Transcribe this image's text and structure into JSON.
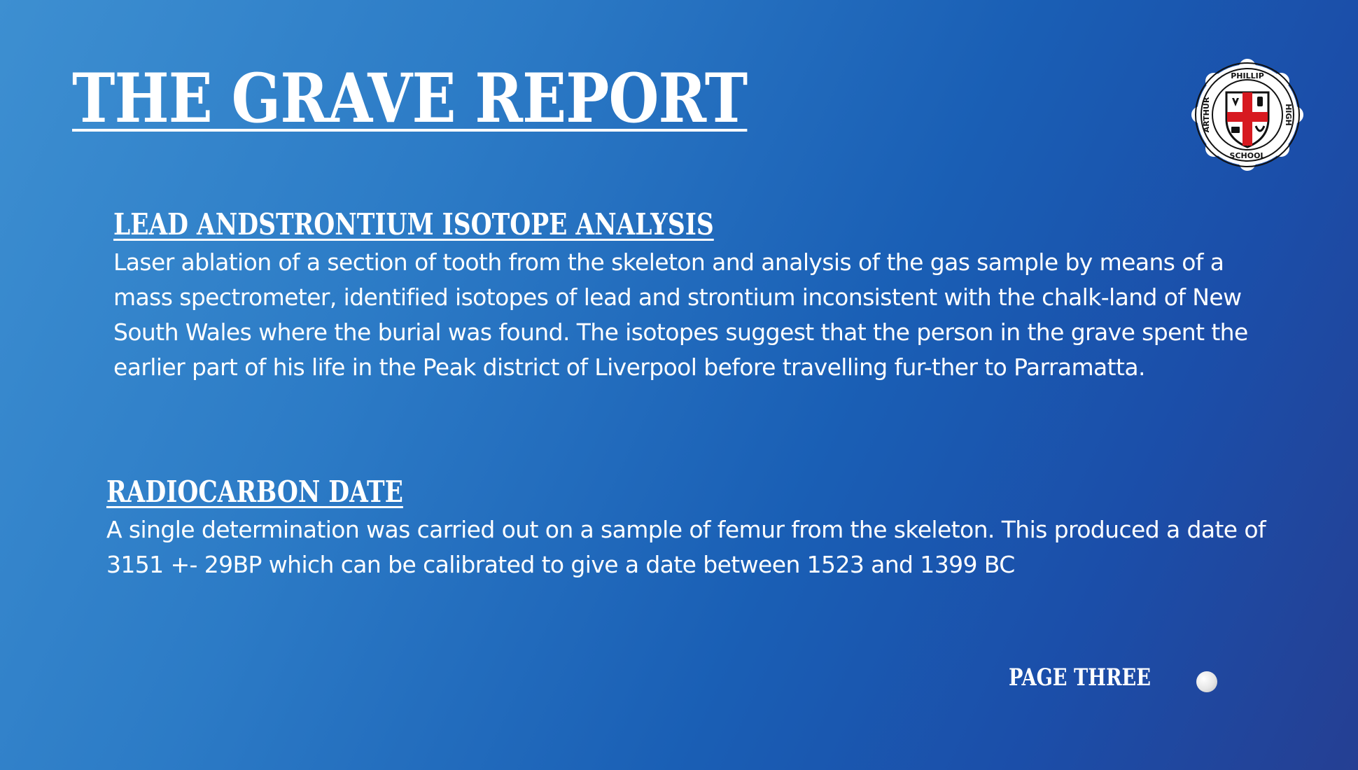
{
  "title": "THE GRAVE REPORT",
  "logo": {
    "top_text": "PHILLIP",
    "left_text": "ARTHUR",
    "right_text": "HIGH",
    "bottom_text": "SCHOOL",
    "colors": {
      "red": "#d71920",
      "black": "#111111",
      "white": "#ffffff"
    }
  },
  "sections": [
    {
      "heading": "LEAD ANDSTRONTIUM ISOTOPE ANALYSIS",
      "body": "Laser ablation of a section of tooth from the skeleton and analysis of the gas sample by means of a mass spectrometer, identified isotopes of lead and strontium inconsistent with the chalk-land of New South Wales where the burial was found. The isotopes suggest that the person in the grave spent the earlier part of his life in the Peak district of Liverpool before travelling fur-ther to Parramatta."
    },
    {
      "heading": "RADIOCARBON DATE",
      "body": "A single determination was carried out on a sample of femur from the skeleton. This produced a date of 3151 +- 29BP which can be calibrated to give a date between 1523 and 1399 BC"
    }
  ],
  "footer": {
    "page_label": "PAGE THREE"
  }
}
